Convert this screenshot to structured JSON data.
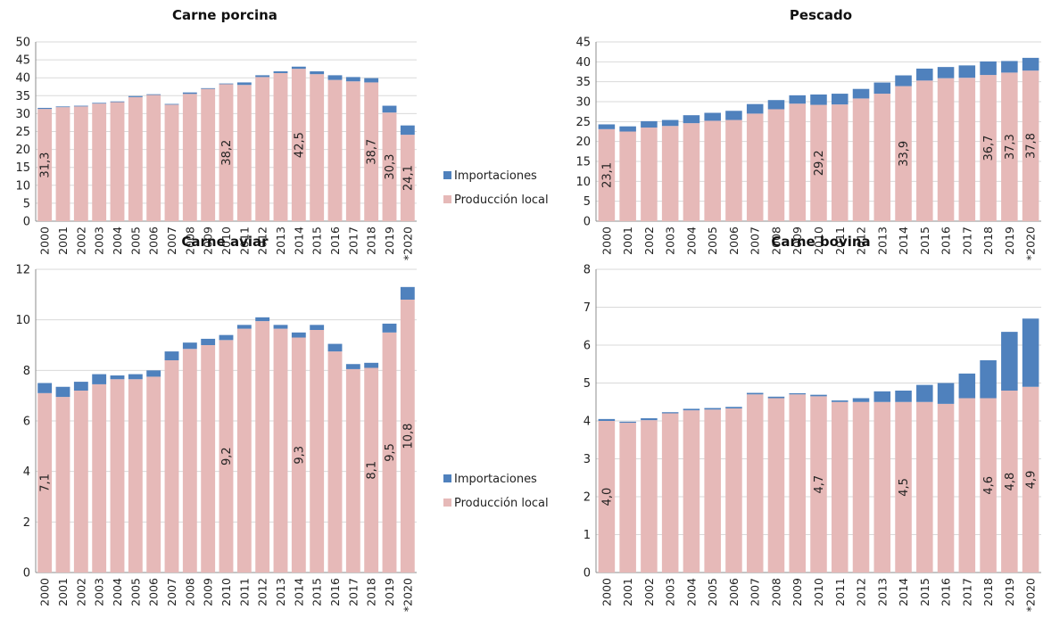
{
  "chart_data": [
    {
      "id": "porcina",
      "type": "bar",
      "stacked": true,
      "title": "Carne porcina",
      "ylim": [
        0,
        50
      ],
      "yticks": [
        0,
        5,
        10,
        15,
        20,
        25,
        30,
        35,
        40,
        45,
        50
      ],
      "grid": true,
      "legend": "right",
      "categories": [
        "2000",
        "2001",
        "2002",
        "2003",
        "2004",
        "2005",
        "2006",
        "2007",
        "2008",
        "2009",
        "2010",
        "2011",
        "2012",
        "2013",
        "2014",
        "2015",
        "2016",
        "2017",
        "2018",
        "2019",
        "*2020"
      ],
      "series": [
        {
          "name": "Producción local",
          "color": "#e6b9b8",
          "values": [
            31.3,
            31.8,
            32.0,
            32.8,
            33.2,
            34.6,
            35.2,
            32.5,
            35.5,
            36.9,
            38.2,
            38.0,
            40.2,
            41.3,
            42.5,
            41.0,
            39.4,
            39.0,
            38.7,
            30.3,
            24.1
          ]
        },
        {
          "name": "Importaciones",
          "color": "#4f81bd",
          "values": [
            0.3,
            0.2,
            0.2,
            0.2,
            0.2,
            0.3,
            0.2,
            0.2,
            0.4,
            0.2,
            0.2,
            0.7,
            0.5,
            0.5,
            0.6,
            0.8,
            1.3,
            1.2,
            1.2,
            1.9,
            2.6
          ]
        }
      ],
      "data_labels": [
        {
          "index": 0,
          "text": "31,3"
        },
        {
          "index": 10,
          "text": "38,2"
        },
        {
          "index": 14,
          "text": "42,5"
        },
        {
          "index": 18,
          "text": "38,7"
        },
        {
          "index": 19,
          "text": "30,3"
        },
        {
          "index": 20,
          "text": "24,1"
        }
      ]
    },
    {
      "id": "pescado",
      "type": "bar",
      "stacked": true,
      "title": "Pescado",
      "ylim": [
        0,
        45
      ],
      "yticks": [
        0,
        5,
        10,
        15,
        20,
        25,
        30,
        35,
        40,
        45
      ],
      "grid": true,
      "legend": "none",
      "categories": [
        "2000",
        "2001",
        "2002",
        "2003",
        "2004",
        "2005",
        "2006",
        "2007",
        "2008",
        "2009",
        "2010",
        "2011",
        "2012",
        "2013",
        "2014",
        "2015",
        "2016",
        "2017",
        "2018",
        "2019",
        "*2020"
      ],
      "series": [
        {
          "name": "Producción local",
          "color": "#e6b9b8",
          "values": [
            23.1,
            22.5,
            23.5,
            23.9,
            24.6,
            25.2,
            25.4,
            27.0,
            28.1,
            29.5,
            29.2,
            29.3,
            30.8,
            32.0,
            33.9,
            35.3,
            35.9,
            36.0,
            36.7,
            37.3,
            37.8
          ]
        },
        {
          "name": "Importaciones",
          "color": "#4f81bd",
          "values": [
            1.2,
            1.3,
            1.6,
            1.5,
            2.0,
            2.0,
            2.3,
            2.4,
            2.3,
            2.1,
            2.6,
            2.7,
            2.4,
            2.8,
            2.7,
            3.0,
            2.8,
            3.1,
            3.4,
            2.9,
            3.2
          ]
        }
      ],
      "data_labels": [
        {
          "index": 0,
          "text": "23,1"
        },
        {
          "index": 10,
          "text": "29,2"
        },
        {
          "index": 14,
          "text": "33,9"
        },
        {
          "index": 18,
          "text": "36,7"
        },
        {
          "index": 19,
          "text": "37,3"
        },
        {
          "index": 20,
          "text": "37,8"
        }
      ]
    },
    {
      "id": "aviar",
      "type": "bar",
      "stacked": true,
      "title": "Carne aviar",
      "ylim": [
        0,
        12
      ],
      "yticks": [
        0,
        2,
        4,
        6,
        8,
        10,
        12
      ],
      "grid": true,
      "legend": "right",
      "categories": [
        "2000",
        "2001",
        "2002",
        "2003",
        "2004",
        "2005",
        "2006",
        "2007",
        "2008",
        "2009",
        "2010",
        "2011",
        "2012",
        "2013",
        "2014",
        "2015",
        "2016",
        "2017",
        "2018",
        "2019",
        "*2020"
      ],
      "series": [
        {
          "name": "Producción local",
          "color": "#e6b9b8",
          "values": [
            7.1,
            6.95,
            7.2,
            7.45,
            7.65,
            7.65,
            7.75,
            8.4,
            8.85,
            9.0,
            9.2,
            9.65,
            9.95,
            9.65,
            9.3,
            9.6,
            8.75,
            8.05,
            8.1,
            9.5,
            10.8
          ]
        },
        {
          "name": "Importaciones",
          "color": "#4f81bd",
          "values": [
            0.4,
            0.4,
            0.35,
            0.4,
            0.15,
            0.2,
            0.25,
            0.35,
            0.25,
            0.25,
            0.2,
            0.15,
            0.15,
            0.15,
            0.2,
            0.2,
            0.3,
            0.2,
            0.2,
            0.35,
            0.5
          ]
        }
      ],
      "data_labels": [
        {
          "index": 0,
          "text": "7,1"
        },
        {
          "index": 10,
          "text": "9,2"
        },
        {
          "index": 14,
          "text": "9,3"
        },
        {
          "index": 18,
          "text": "8,1"
        },
        {
          "index": 19,
          "text": "9,5"
        },
        {
          "index": 20,
          "text": "10,8"
        }
      ]
    },
    {
      "id": "bovina",
      "type": "bar",
      "stacked": true,
      "title": "Carne bovina",
      "ylim": [
        0,
        8
      ],
      "yticks": [
        0,
        1,
        2,
        3,
        4,
        5,
        6,
        7,
        8
      ],
      "grid": true,
      "legend": "none",
      "categories": [
        "2000",
        "2001",
        "2002",
        "2003",
        "2004",
        "2005",
        "2006",
        "2007",
        "2008",
        "2009",
        "2010",
        "2011",
        "2012",
        "2013",
        "2014",
        "2015",
        "2016",
        "2017",
        "2018",
        "2019",
        "*2020"
      ],
      "series": [
        {
          "name": "Producción local",
          "color": "#e6b9b8",
          "values": [
            4.0,
            3.95,
            4.02,
            4.2,
            4.28,
            4.3,
            4.33,
            4.7,
            4.6,
            4.7,
            4.65,
            4.5,
            4.5,
            4.5,
            4.5,
            4.5,
            4.45,
            4.6,
            4.6,
            4.8,
            4.9
          ]
        },
        {
          "name": "Importaciones",
          "color": "#4f81bd",
          "values": [
            0.05,
            0.03,
            0.05,
            0.03,
            0.04,
            0.04,
            0.04,
            0.04,
            0.04,
            0.03,
            0.04,
            0.04,
            0.1,
            0.28,
            0.3,
            0.45,
            0.55,
            0.65,
            1.0,
            1.55,
            1.8
          ]
        }
      ],
      "data_labels": [
        {
          "index": 0,
          "text": "4,0"
        },
        {
          "index": 10,
          "text": "4,7"
        },
        {
          "index": 14,
          "text": "4,5"
        },
        {
          "index": 18,
          "text": "4,6"
        },
        {
          "index": 19,
          "text": "4,8"
        },
        {
          "index": 20,
          "text": "4,9"
        }
      ]
    }
  ],
  "legend": {
    "importaciones_label": "Importaciones",
    "produccion_label": "Producción local",
    "importaciones_color": "#4f81bd",
    "produccion_color": "#e6b9b8"
  }
}
